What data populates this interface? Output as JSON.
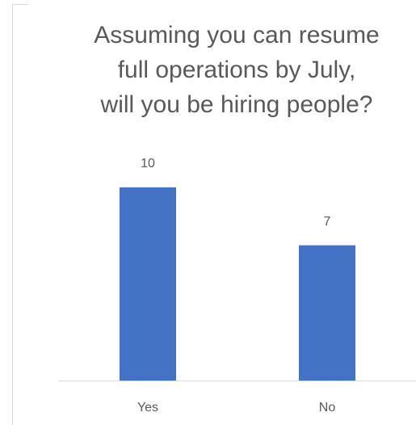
{
  "chart_data": {
    "type": "bar",
    "title": [
      "Assuming you can resume",
      "full operations by July,",
      "will you be hiring people?"
    ],
    "categories": [
      "Yes",
      "No"
    ],
    "values": [
      10,
      7
    ],
    "color": "#4472c4",
    "ylim": [
      0,
      12
    ]
  }
}
